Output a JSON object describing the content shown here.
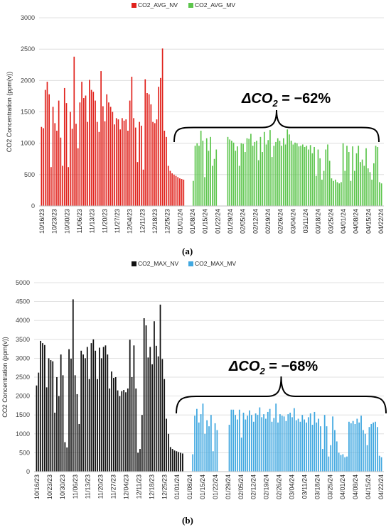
{
  "panel_labels": [
    "(a)",
    "(b)"
  ],
  "chart_data": [
    {
      "type": "bar",
      "ylabel": "CO2 Concentration (ppm(v))",
      "ylim": [
        0,
        3000
      ],
      "yticks": [
        "0",
        "500",
        "1000",
        "1500",
        "2000",
        "2500",
        "3000"
      ],
      "xtick_labels": [
        "10/16/23",
        "10/23/23",
        "10/30/23",
        "11/06/23",
        "11/13/23",
        "11/20/23",
        "11/27/23",
        "12/04/23",
        "12/11/23",
        "12/18/23",
        "12/25/23",
        "01/01/24",
        "01/08/24",
        "01/15/24",
        "01/22/24",
        "01/29/24",
        "02/05/24",
        "02/12/24",
        "02/19/24",
        "02/26/24",
        "03/04/24",
        "03/11/24",
        "03/18/24",
        "03/25/24",
        "04/01/24",
        "04/08/24",
        "04/15/24",
        "04/22/24"
      ],
      "legend_position": "top",
      "grid": "horizontal",
      "annotation": {
        "main": "ΔCO",
        "sub": "2",
        "rest": " = −62%"
      },
      "series": [
        {
          "name": "CO2_AVG_NV",
          "color": "#e0211b",
          "values": [
            1260,
            1240,
            1850,
            1980,
            1780,
            620,
            1580,
            1320,
            1200,
            1680,
            1090,
            640,
            1880,
            1640,
            620,
            1500,
            1230,
            2380,
            1310,
            920,
            1650,
            1980,
            1720,
            1760,
            1340,
            2010,
            1850,
            1820,
            1680,
            1340,
            1180,
            2150,
            1590,
            1350,
            1780,
            1650,
            1580,
            1500,
            1300,
            1400,
            1380,
            1220,
            1400,
            1360,
            1380,
            1200,
            1680,
            2060,
            1400,
            1250,
            700,
            1340,
            1280,
            580,
            2020,
            1800,
            1780,
            1620,
            1340,
            1320,
            1380,
            1900,
            2040,
            2510,
            1200,
            1100,
            640,
            560,
            520,
            500,
            480,
            460,
            440,
            430,
            420
          ]
        },
        {
          "name": "CO2_AVG_MV",
          "color": "#5cc54c",
          "values": [
            0,
            0,
            0,
            0,
            400,
            960,
            1000,
            960,
            1200,
            1040,
            460,
            1080,
            880,
            1100,
            640,
            750,
            900,
            0,
            0,
            0,
            0,
            0,
            1100,
            1060,
            1040,
            1010,
            880,
            950,
            640,
            1000,
            990,
            860,
            1080,
            1070,
            1150,
            960,
            1020,
            1040,
            730,
            1100,
            860,
            1180,
            980,
            1050,
            1210,
            780,
            960,
            1020,
            1080,
            1040,
            960,
            1080,
            980,
            1220,
            1140,
            1040,
            980,
            1010,
            1000,
            950,
            960,
            980,
            940,
            960,
            900,
            970,
            840,
            940,
            480,
            900,
            760,
            420,
            560,
            900,
            980,
            720,
            440,
            400,
            420,
            380,
            360,
            380,
            1000,
            560,
            960,
            860,
            400,
            950,
            560,
            840,
            960,
            700,
            740,
            640,
            920,
            600,
            540,
            420,
            680,
            960,
            940,
            380,
            360
          ]
        }
      ]
    },
    {
      "type": "bar",
      "ylabel": "CO2 Concentration (ppm(v))",
      "ylim": [
        0,
        5000
      ],
      "yticks": [
        "0",
        "500",
        "1000",
        "1500",
        "2000",
        "2500",
        "3000",
        "3500",
        "4000",
        "4500",
        "5000"
      ],
      "xtick_labels": [
        "10/16/23",
        "10/23/23",
        "10/30/23",
        "11/06/23",
        "11/13/23",
        "11/20/23",
        "11/27/23",
        "12/04/23",
        "12/11/23",
        "12/18/23",
        "12/25/23",
        "01/01/24",
        "01/08/24",
        "01/15/24",
        "01/22/24",
        "01/29/24",
        "02/05/24",
        "02/12/24",
        "02/19/24",
        "02/26/24",
        "03/04/24",
        "03/11/24",
        "03/18/24",
        "03/25/24",
        "04/01/24",
        "04/08/24",
        "04/15/24",
        "04/22/24"
      ],
      "legend_position": "top",
      "grid": "horizontal",
      "annotation": {
        "main": "ΔCO",
        "sub": "2",
        "rest": " = −68%"
      },
      "series": [
        {
          "name": "CO2_MAX_NV",
          "color": "#111111",
          "values": [
            2280,
            2620,
            3460,
            3400,
            3350,
            2230,
            3000,
            2950,
            2920,
            1560,
            2500,
            2000,
            3100,
            2550,
            780,
            640,
            3240,
            2990,
            4560,
            2550,
            2050,
            1260,
            3200,
            3100,
            3000,
            3300,
            2450,
            3400,
            3500,
            3200,
            2450,
            3280,
            3000,
            3300,
            3340,
            3100,
            2200,
            2650,
            2480,
            2500,
            2150,
            2000,
            2130,
            2160,
            2100,
            2200,
            3490,
            2500,
            3340,
            2200,
            500,
            600,
            1500,
            4060,
            3870,
            3020,
            3300,
            2840,
            3980,
            3330,
            3050,
            4420,
            2980,
            2450,
            1400,
            1000,
            650,
            600,
            560,
            540,
            520,
            500,
            480
          ]
        },
        {
          "name": "CO2_MAX_MV",
          "color": "#41a8e0",
          "values": [
            0,
            0,
            0,
            0,
            460,
            1480,
            1660,
            1300,
            1520,
            1800,
            1000,
            1360,
            1200,
            1500,
            540,
            1280,
            1100,
            0,
            0,
            0,
            0,
            0,
            1240,
            1640,
            1640,
            1500,
            1380,
            1640,
            900,
            1560,
            1380,
            1480,
            1620,
            1500,
            1320,
            1540,
            1500,
            1700,
            1440,
            1520,
            1400,
            1580,
            1660,
            1320,
            1420,
            1800,
            1300,
            1520,
            1480,
            1460,
            1340,
            1520,
            1560,
            1440,
            1680,
            1360,
            1400,
            1320,
            1500,
            1380,
            1300,
            1440,
            1540,
            1240,
            1580,
            1300,
            1400,
            1200,
            600,
            1500,
            1200,
            400,
            700,
            1460,
            1100,
            800,
            500,
            440,
            460,
            380,
            400,
            1320,
            1280,
            1340,
            1260,
            1400,
            1300,
            1480,
            1100,
            1000,
            700,
            1180,
            1260,
            1300,
            1320,
            1180,
            420,
            380
          ]
        }
      ]
    }
  ]
}
